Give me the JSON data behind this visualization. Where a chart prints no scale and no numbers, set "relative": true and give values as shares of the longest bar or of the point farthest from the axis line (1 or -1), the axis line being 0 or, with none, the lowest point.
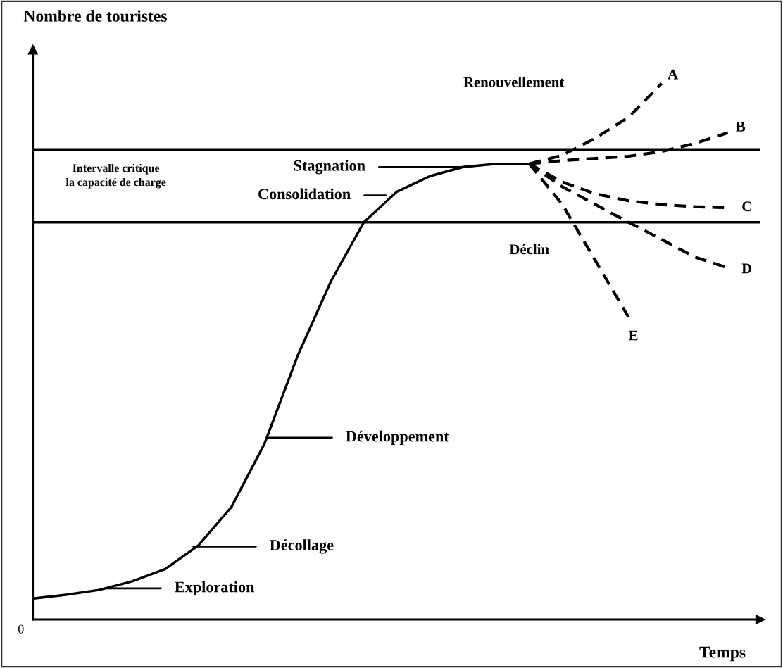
{
  "chart_data": {
    "type": "line",
    "relative": true,
    "ylabel": "Nombre de touristes",
    "xlabel": "Temps",
    "categories": [
      null,
      null,
      null,
      null,
      null,
      null,
      null,
      null,
      null,
      null,
      null,
      null,
      null,
      null,
      null,
      null,
      null,
      null,
      null,
      null,
      null,
      null
    ],
    "series": [
      {
        "color": "#000000",
        "line_style": "solid",
        "values": [
          0.039,
          0.046,
          0.055,
          0.071,
          0.094,
          0.138,
          0.21,
          0.328,
          0.492,
          0.63,
          0.741,
          0.798,
          0.827,
          0.844,
          0.85,
          0.85,
          null,
          null,
          null,
          null,
          null,
          null
        ]
      },
      {
        "name": "A",
        "color": "#000000",
        "line_style": "dashed",
        "values": [
          null,
          null,
          null,
          null,
          null,
          null,
          null,
          null,
          null,
          null,
          null,
          null,
          null,
          null,
          null,
          0.85,
          0.866,
          0.898,
          0.937,
          1.0,
          null,
          null
        ]
      },
      {
        "name": "B",
        "color": "#000000",
        "line_style": "dashed",
        "values": [
          null,
          null,
          null,
          null,
          null,
          null,
          null,
          null,
          null,
          null,
          null,
          null,
          null,
          null,
          null,
          0.85,
          0.856,
          0.86,
          0.864,
          0.873,
          0.888,
          0.908
        ]
      },
      {
        "name": "C",
        "color": "#000000",
        "line_style": "dashed",
        "values": [
          null,
          null,
          null,
          null,
          null,
          null,
          null,
          null,
          null,
          null,
          null,
          null,
          null,
          null,
          null,
          0.85,
          0.816,
          0.794,
          0.781,
          0.774,
          0.77,
          0.768
        ]
      },
      {
        "name": "D",
        "color": "#000000",
        "line_style": "dashed",
        "values": [
          null,
          null,
          null,
          null,
          null,
          null,
          null,
          null,
          null,
          null,
          null,
          null,
          null,
          null,
          null,
          0.85,
          0.807,
          0.774,
          0.741,
          0.709,
          0.676,
          0.656
        ]
      },
      {
        "name": "E",
        "color": "#000000",
        "line_style": "dashed",
        "values": [
          null,
          null,
          null,
          null,
          null,
          null,
          null,
          null,
          null,
          null,
          null,
          null,
          null,
          null,
          null,
          0.85,
          0.774,
          0.669,
          0.564,
          null,
          null,
          null
        ]
      }
    ],
    "ref_lines": [
      {
        "axis": "y",
        "value": 0.877,
        "color": "#000000"
      },
      {
        "axis": "y",
        "value": 0.741,
        "color": "#000000"
      }
    ],
    "annotations": [
      "Renouvellement",
      "Stagnation",
      "Consolidation",
      "Développement",
      "Décollage",
      "Exploration",
      "Déclin",
      "Intervalle critique\nla capacité de charge",
      "0"
    ],
    "legend": false,
    "grid": false,
    "marker": "none"
  }
}
